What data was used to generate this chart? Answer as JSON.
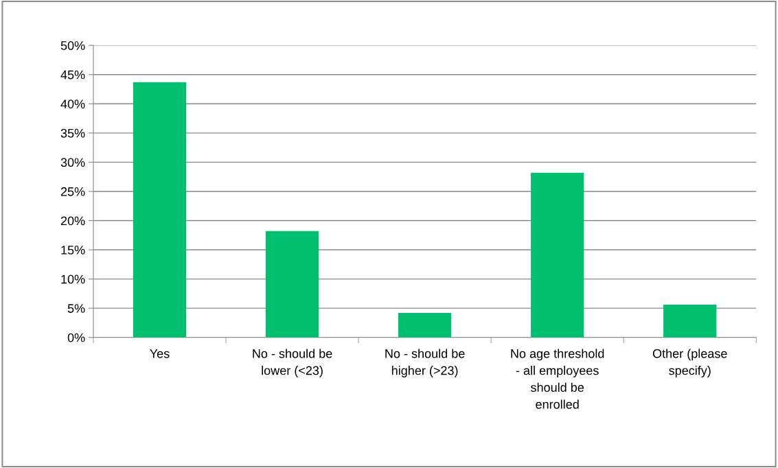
{
  "chart_data": {
    "type": "bar",
    "categories": [
      "Yes",
      "No - should be lower (<23)",
      "No - should be higher (>23)",
      "No age threshold - all employees should be enrolled",
      "Other (please specify)"
    ],
    "values": [
      43.7,
      18.2,
      4.2,
      28.2,
      5.6
    ],
    "color": "#00bf6f",
    "ylim": [
      0,
      50
    ],
    "yticks": [
      {
        "value": 0,
        "label": "0%"
      },
      {
        "value": 5,
        "label": "5%"
      },
      {
        "value": 10,
        "label": "10%"
      },
      {
        "value": 15,
        "label": "15%"
      },
      {
        "value": 20,
        "label": "20%"
      },
      {
        "value": 25,
        "label": "25%"
      },
      {
        "value": 30,
        "label": "30%"
      },
      {
        "value": 35,
        "label": "35%"
      },
      {
        "value": 40,
        "label": "40%"
      },
      {
        "value": 45,
        "label": "45%"
      },
      {
        "value": 50,
        "label": "50%"
      }
    ],
    "grid": "y",
    "legend": false
  }
}
